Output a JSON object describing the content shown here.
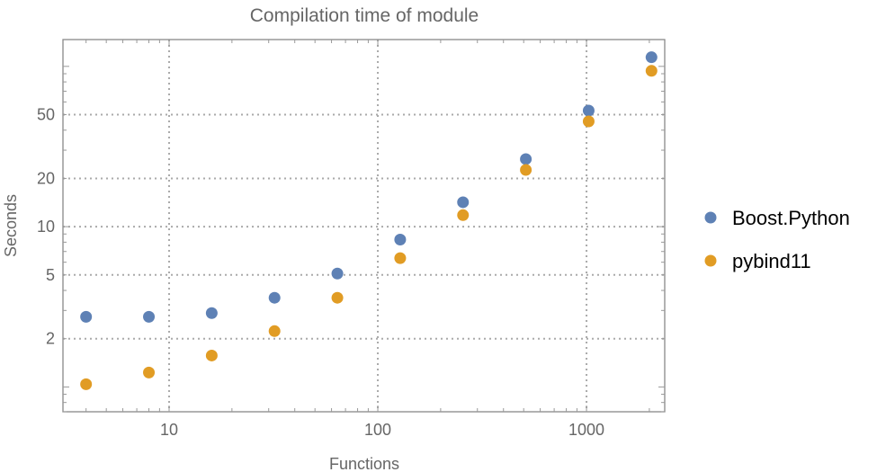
{
  "chart_data": {
    "type": "scatter",
    "title": "Compilation time of module",
    "xlabel": "Functions",
    "ylabel": "Seconds",
    "xscale": "log",
    "yscale": "log",
    "xlim": [
      3.1,
      2370
    ],
    "ylim": [
      0.7,
      147
    ],
    "grid": true,
    "legend_position": "right",
    "x_ticks": [
      10,
      100,
      1000
    ],
    "x_tick_labels": [
      "10",
      "100",
      "1000"
    ],
    "y_ticks": [
      2,
      5,
      10,
      20,
      50
    ],
    "y_tick_labels": [
      "2",
      "5",
      "10",
      "20",
      "50"
    ],
    "x": [
      4,
      8,
      16,
      32,
      64,
      128,
      256,
      512,
      1024,
      2048
    ],
    "series": [
      {
        "name": "Boost.Python",
        "color": "#5E81B5",
        "values": [
          2.74,
          2.74,
          2.89,
          3.6,
          5.1,
          8.3,
          14.2,
          26.4,
          53,
          114
        ]
      },
      {
        "name": "pybind11",
        "color": "#E19C24",
        "values": [
          1.04,
          1.23,
          1.57,
          2.23,
          3.6,
          6.36,
          11.8,
          22.6,
          45.4,
          93.8
        ]
      }
    ]
  }
}
